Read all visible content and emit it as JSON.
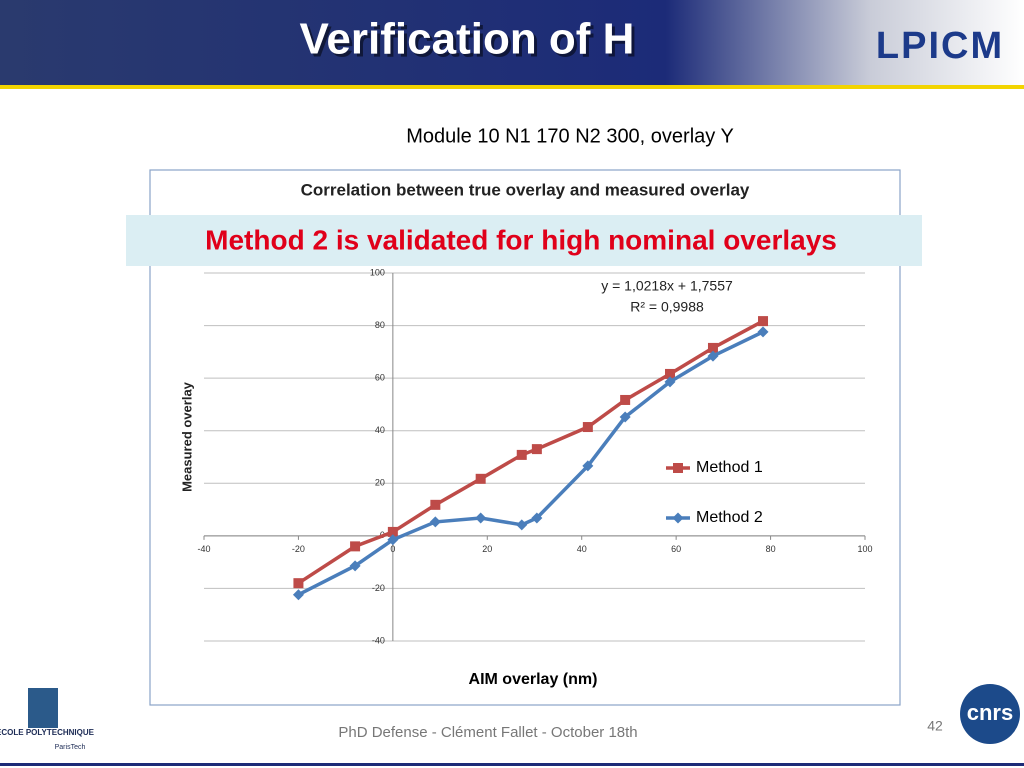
{
  "header": {
    "title": "Verification of H",
    "logo": "LPICM"
  },
  "subtitle": "Module 10 N1 170 N2 300, overlay Y",
  "banner": "Method 2 is validated for high nominal overlays",
  "footer": {
    "text": "PhD Defense - Clément Fallet - October 18th",
    "page": "42"
  },
  "logos": {
    "school": "ÉCOLE POLYTECHNIQUE",
    "school_sub": "ParisTech",
    "cnrs": "cnrs"
  },
  "chart_data": {
    "type": "line",
    "title": "Correlation between true overlay and measured overlay",
    "x_label": "AIM overlay (nm)",
    "y_label": "Measured overlay",
    "annotations": [
      "y = 1,0218x + 1,7557",
      "R² = 0,9988"
    ],
    "x": [
      -20,
      -8,
      0,
      9,
      18.6,
      27.3,
      30.5,
      41.3,
      49.2,
      58.7,
      67.8,
      78.4
    ],
    "series": [
      {
        "name": "Method 1",
        "color": "#be4b48",
        "marker": "square",
        "values": [
          -18,
          -4,
          1.5,
          11.8,
          21.7,
          30.8,
          33,
          41.4,
          51.7,
          61.6,
          71.5,
          81.7
        ]
      },
      {
        "name": "Method 2",
        "color": "#4a7ebb",
        "marker": "diamond",
        "values": [
          -22.4,
          -11.4,
          -1.5,
          5.3,
          6.8,
          4.2,
          6.8,
          26.6,
          45.2,
          58.6,
          68.4,
          77.6
        ]
      }
    ],
    "xlim": [
      -40,
      100
    ],
    "xticks": [
      -40,
      -20,
      0,
      20,
      40,
      60,
      80,
      100
    ],
    "ylim": [
      -40,
      100
    ],
    "yticks": [
      -40,
      -20,
      0,
      20,
      40,
      60,
      80,
      100
    ],
    "grid": true,
    "legend": "right"
  }
}
